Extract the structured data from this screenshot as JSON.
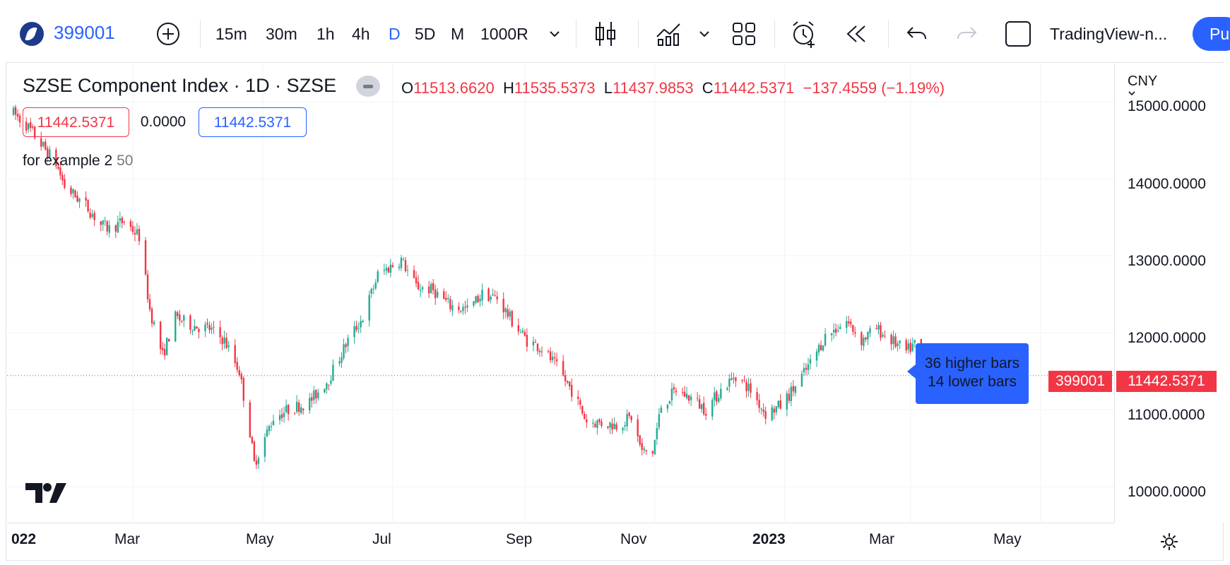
{
  "toolbar": {
    "symbol": "399001",
    "intervals": [
      "15m",
      "30m",
      "1h",
      "4h",
      "D",
      "5D",
      "M",
      "1000R"
    ],
    "active_interval": "D",
    "layout_name": "TradingView-n...",
    "publish_label": "Pu",
    "icons": [
      "logo-icon",
      "add-symbol-icon",
      "chevron-down-icon",
      "candles-icon",
      "indicators-icon",
      "chevron-down-icon",
      "layout-icon",
      "alert-icon",
      "replay-icon",
      "undo-icon",
      "redo-icon",
      "square-icon"
    ]
  },
  "legend": {
    "title": "SZSE Component Index · 1D · SZSE",
    "o_label": "O",
    "o_value": "11513.6620",
    "h_label": "H",
    "h_value": "11535.5373",
    "l_label": "L",
    "l_value": "11437.9853",
    "c_label": "C",
    "c_value": "11442.5371",
    "change": "−137.4559 (−1.19%)",
    "box1": "11442.5371",
    "box2": "0.0000",
    "box3": "11442.5371",
    "indicator_name": "for example 2",
    "indicator_value": "50"
  },
  "price_scale": {
    "currency": "CNY",
    "labels": [
      "15000.0000",
      "14000.0000",
      "13000.0000",
      "12000.0000",
      "11000.0000",
      "10000.0000"
    ],
    "symbol_tag": "399001",
    "price_tag": "11442.5371"
  },
  "time_scale": {
    "labels": [
      "022",
      "Mar",
      "May",
      "Jul",
      "Sep",
      "Nov",
      "2023",
      "Mar",
      "May"
    ]
  },
  "tooltip": {
    "line1": "36 higher bars",
    "line2": "14 lower bars"
  },
  "colors": {
    "up": "#22ab94",
    "down": "#f23645",
    "accent": "#2962ff"
  },
  "chart_data": {
    "type": "candlestick",
    "y_range": [
      9700,
      15100
    ],
    "x_range": [
      "2022-01-01",
      "2023-05-20"
    ],
    "last_close": 11442.5371,
    "path": [
      [
        "2022-01-04",
        14850
      ],
      [
        "2022-01-10",
        14700
      ],
      [
        "2022-01-17",
        14450
      ],
      [
        "2022-01-24",
        14200
      ],
      [
        "2022-01-28",
        13900
      ],
      [
        "2022-02-07",
        13650
      ],
      [
        "2022-02-14",
        13400
      ],
      [
        "2022-02-18",
        13350
      ],
      [
        "2022-02-25",
        13450
      ],
      [
        "2022-03-04",
        13250
      ],
      [
        "2022-03-09",
        12300
      ],
      [
        "2022-03-15",
        11700
      ],
      [
        "2022-03-21",
        12200
      ],
      [
        "2022-03-28",
        12100
      ],
      [
        "2022-04-06",
        12050
      ],
      [
        "2022-04-13",
        11900
      ],
      [
        "2022-04-20",
        11500
      ],
      [
        "2022-04-25",
        10700
      ],
      [
        "2022-04-27",
        10300
      ],
      [
        "2022-05-06",
        10900
      ],
      [
        "2022-05-13",
        11000
      ],
      [
        "2022-05-23",
        11100
      ],
      [
        "2022-06-01",
        11400
      ],
      [
        "2022-06-10",
        11900
      ],
      [
        "2022-06-17",
        12200
      ],
      [
        "2022-06-24",
        12750
      ],
      [
        "2022-07-05",
        12950
      ],
      [
        "2022-07-12",
        12600
      ],
      [
        "2022-07-20",
        12550
      ],
      [
        "2022-07-28",
        12350
      ],
      [
        "2022-08-05",
        12300
      ],
      [
        "2022-08-12",
        12500
      ],
      [
        "2022-08-19",
        12450
      ],
      [
        "2022-08-26",
        12150
      ],
      [
        "2022-09-02",
        11900
      ],
      [
        "2022-09-09",
        11800
      ],
      [
        "2022-09-16",
        11550
      ],
      [
        "2022-09-23",
        11250
      ],
      [
        "2022-09-30",
        10850
      ],
      [
        "2022-10-14",
        10800
      ],
      [
        "2022-10-21",
        10900
      ],
      [
        "2022-10-26",
        10450
      ],
      [
        "2022-10-31",
        10450
      ],
      [
        "2022-11-04",
        11050
      ],
      [
        "2022-11-11",
        11250
      ],
      [
        "2022-11-18",
        11150
      ],
      [
        "2022-11-25",
        11000
      ],
      [
        "2022-12-02",
        11250
      ],
      [
        "2022-12-09",
        11450
      ],
      [
        "2022-12-16",
        11250
      ],
      [
        "2022-12-23",
        10950
      ],
      [
        "2022-12-30",
        11050
      ],
      [
        "2023-01-06",
        11300
      ],
      [
        "2023-01-13",
        11600
      ],
      [
        "2023-01-20",
        11950
      ],
      [
        "2023-01-30",
        12150
      ],
      [
        "2023-02-06",
        11900
      ],
      [
        "2023-02-13",
        12050
      ],
      [
        "2023-02-20",
        11900
      ],
      [
        "2023-02-27",
        11750
      ],
      [
        "2023-03-03",
        11850
      ],
      [
        "2023-03-10",
        11650
      ],
      [
        "2023-03-16",
        11442.5
      ]
    ]
  }
}
